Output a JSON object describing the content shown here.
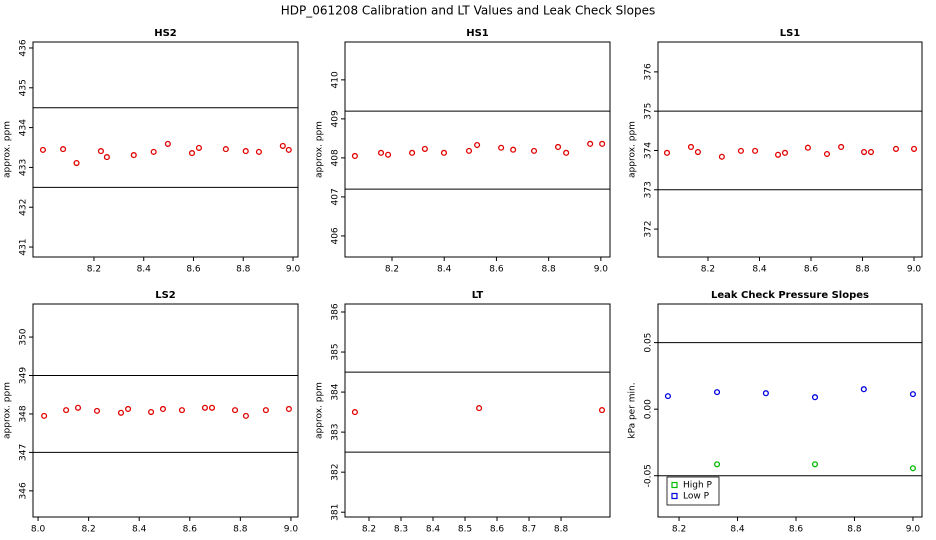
{
  "title": "HDP_061208  Calibration and LT Values and Leak Check Slopes",
  "chart_data": [
    {
      "type": "scatter",
      "title": "HS2",
      "ylabel": "approx. ppm",
      "color": "#e00000",
      "x": [
        7.995,
        8.076,
        8.13,
        8.228,
        8.252,
        8.36,
        8.44,
        8.497,
        8.594,
        8.622,
        8.73,
        8.81,
        8.863,
        8.959,
        8.983
      ],
      "values": [
        433.44,
        433.46,
        433.11,
        433.41,
        433.26,
        433.31,
        433.39,
        433.59,
        433.36,
        433.49,
        433.46,
        433.41,
        433.39,
        433.54,
        433.44
      ],
      "xlim": [
        7.955,
        9.02
      ],
      "xticks": [
        8.2,
        8.4,
        8.6,
        8.8,
        {
          "value": 9,
          "label": "9.0"
        }
      ],
      "ylim": [
        430.75,
        436.15
      ],
      "yticks": [
        431,
        432,
        433,
        434,
        435,
        436
      ],
      "hlines": [
        434.5,
        432.5
      ]
    },
    {
      "type": "scatter",
      "title": "HS1",
      "ylabel": "approx. ppm",
      "color": "#e00000",
      "x": [
        8.058,
        8.158,
        8.185,
        8.277,
        8.326,
        8.399,
        8.495,
        8.526,
        8.618,
        8.664,
        8.744,
        8.836,
        8.867,
        8.959,
        9.005
      ],
      "values": [
        408.05,
        408.13,
        408.08,
        408.13,
        408.23,
        408.13,
        408.18,
        408.33,
        408.26,
        408.21,
        408.18,
        408.28,
        408.13,
        408.36,
        408.36
      ],
      "xlim": [
        8.02,
        9.035
      ],
      "xticks": [
        8.2,
        8.4,
        8.6,
        8.8,
        {
          "value": 9,
          "label": "9.0"
        }
      ],
      "ylim": [
        405.46,
        410.97
      ],
      "yticks": [
        406,
        407,
        408,
        409,
        410
      ],
      "hlines": [
        409.2,
        407.2
      ]
    },
    {
      "type": "scatter",
      "title": "LS1",
      "ylabel": "approx. ppm",
      "color": "#e00000",
      "x": [
        8.041,
        8.134,
        8.161,
        8.254,
        8.328,
        8.383,
        8.472,
        8.499,
        8.588,
        8.662,
        8.717,
        8.806,
        8.833,
        8.93,
        9.0
      ],
      "values": [
        373.94,
        374.09,
        373.96,
        373.84,
        373.99,
        373.99,
        373.89,
        373.94,
        374.07,
        373.91,
        374.09,
        373.96,
        373.96,
        374.04,
        374.04
      ],
      "xlim": [
        8.006,
        9.031
      ],
      "xticks": [
        8.2,
        8.4,
        8.6,
        8.8,
        {
          "value": 9,
          "label": "9.0"
        }
      ],
      "ylim": [
        371.29,
        376.76
      ],
      "yticks": [
        372,
        373,
        374,
        375,
        376
      ],
      "hlines": [
        375,
        373
      ]
    },
    {
      "type": "scatter",
      "title": "LS2",
      "ylabel": "approx. ppm",
      "color": "#e00000",
      "x": [
        8.024,
        8.111,
        8.158,
        8.233,
        8.328,
        8.356,
        8.447,
        8.494,
        8.569,
        8.66,
        8.688,
        8.779,
        8.822,
        8.901,
        8.992
      ],
      "values": [
        347.95,
        348.1,
        348.16,
        348.08,
        348.03,
        348.13,
        348.05,
        348.13,
        348.1,
        348.16,
        348.16,
        348.1,
        347.95,
        348.1,
        348.13
      ],
      "xlim": [
        7.98,
        9.028
      ],
      "xticks": [
        {
          "value": 8,
          "label": "8.0"
        },
        8.2,
        8.4,
        8.6,
        8.8,
        {
          "value": 9,
          "label": "9.0"
        }
      ],
      "ylim": [
        345.32,
        350.86
      ],
      "yticks": [
        346,
        347,
        348,
        349,
        350
      ],
      "hlines": [
        349,
        347
      ]
    },
    {
      "type": "scatter",
      "title": "LT",
      "ylabel": "approx. ppm",
      "color": "#e00000",
      "x": [
        8.156,
        8.544,
        8.928
      ],
      "values": [
        383.5,
        383.6,
        383.55
      ],
      "xlim": [
        8.125,
        8.953
      ],
      "xticks": [
        8.2,
        8.3,
        8.4,
        8.5,
        8.6,
        8.7,
        8.8
      ],
      "ylim": [
        380.88,
        386.2
      ],
      "yticks": [
        381,
        382,
        383,
        384,
        385,
        386
      ],
      "hlines": [
        384.5,
        382.5
      ]
    },
    {
      "type": "scatter",
      "title": "Leak Check Pressure Slopes",
      "ylabel": "kPa per min.",
      "series": [
        {
          "name": "High P",
          "color": "#00bb00",
          "x": [
            8.33,
            8.665,
            9.0
          ],
          "values": [
            -0.0414,
            -0.0414,
            -0.0444
          ]
        },
        {
          "name": "Low P",
          "color": "#0000dd",
          "x": [
            8.162,
            8.33,
            8.497,
            8.665,
            8.832,
            9.0
          ],
          "values": [
            0.0098,
            0.0128,
            0.012,
            0.009,
            0.015,
            0.0113
          ]
        }
      ],
      "xlim": [
        8.128,
        9.031
      ],
      "xticks": [
        8.2,
        8.4,
        8.6,
        8.8,
        {
          "value": 9,
          "label": "9.0"
        }
      ],
      "ylim": [
        -0.081,
        0.079
      ],
      "yticks": [
        {
          "value": -0.05,
          "label": "-0.05"
        },
        {
          "value": 0,
          "label": "0.00"
        },
        0.05
      ],
      "hlines": [
        0.05,
        -0.05
      ],
      "legend": "bottom-left"
    }
  ]
}
